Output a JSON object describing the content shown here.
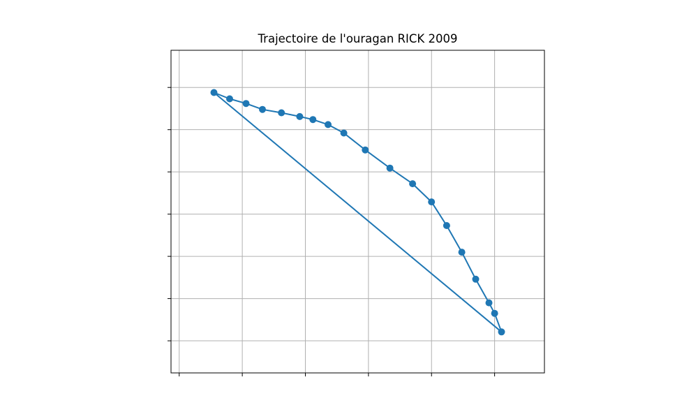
{
  "chart_data": {
    "type": "line",
    "title": "Trajectoire de l'ouragan RICK 2009",
    "xlabel": "",
    "ylabel": "",
    "grid": true,
    "markers": true,
    "line_color": "#1f77b4",
    "grid_color": "#b0b0b0",
    "xlim": [
      -27.9,
      31.3
    ],
    "ylim": [
      -25.5,
      50.9
    ],
    "gridlines_x": [
      -26.6,
      -16.6,
      -6.6,
      3.4,
      13.4,
      23.4
    ],
    "gridlines_y": [
      -17.9,
      -7.9,
      2.1,
      12.1,
      22.1,
      32.1,
      42.1
    ],
    "series": [
      {
        "x": [
          -21.1,
          -18.6,
          -16.0,
          -13.4,
          -10.4,
          -7.5,
          -5.4,
          -3.0,
          -0.5,
          2.9,
          6.8,
          10.4,
          13.4,
          15.8,
          18.2,
          20.4,
          22.5,
          23.4,
          24.5,
          -21.1
        ],
        "y": [
          40.9,
          39.4,
          38.3,
          36.9,
          36.1,
          35.2,
          34.5,
          33.3,
          31.3,
          27.3,
          23.0,
          19.3,
          15.0,
          9.4,
          3.1,
          -3.3,
          -8.9,
          -11.4,
          -15.8,
          40.9
        ]
      }
    ]
  }
}
